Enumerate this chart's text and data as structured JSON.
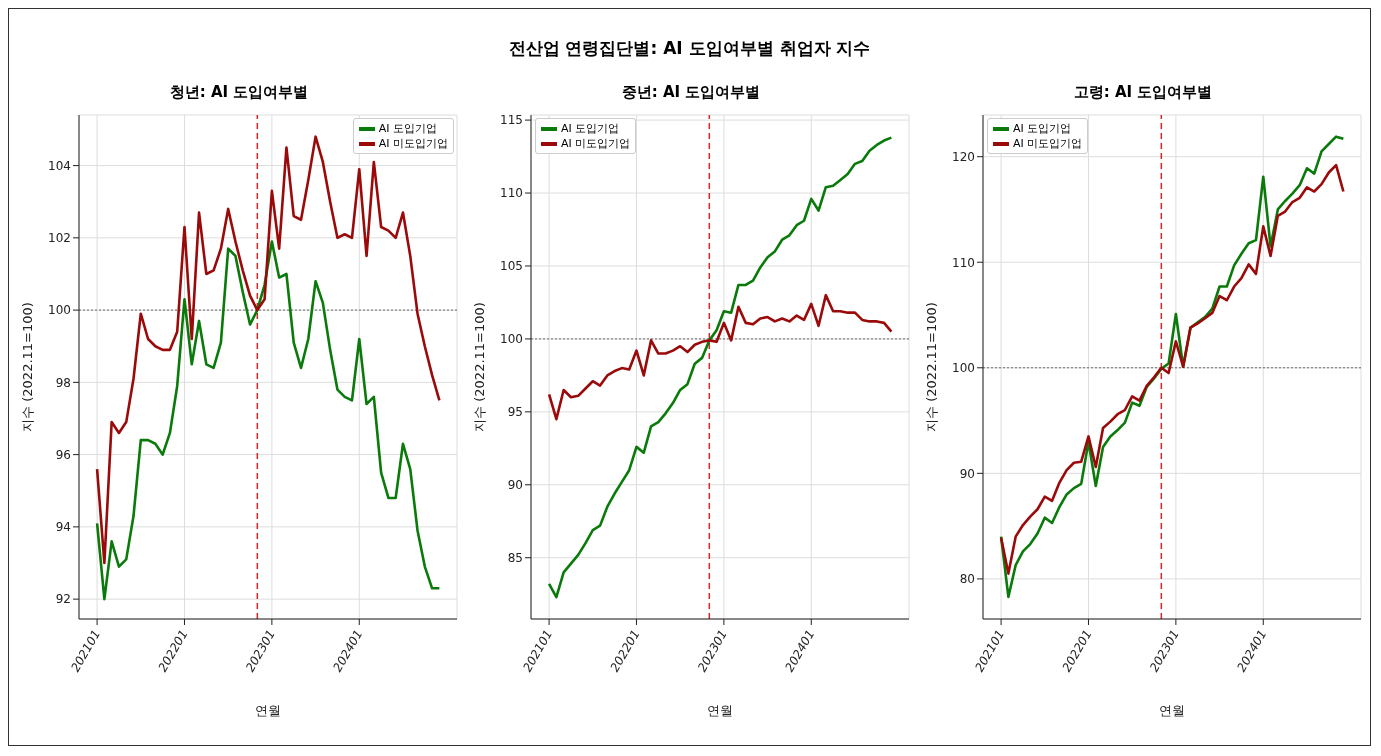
{
  "chart_data": [
    {
      "type": "line",
      "title": "청년: AI 도입여부별",
      "xlabel": "연월",
      "ylabel": "지수 (2022.11=100)",
      "annotations": [
        "전산업 연령집단별: AI 도입여부별 취업자 지수"
      ],
      "x": [
        "2021-01",
        "2021-02",
        "2021-03",
        "2021-04",
        "2021-05",
        "2021-06",
        "2021-07",
        "2021-08",
        "2021-09",
        "2021-10",
        "2021-11",
        "2021-12",
        "2022-01",
        "2022-02",
        "2022-03",
        "2022-04",
        "2022-05",
        "2022-06",
        "2022-07",
        "2022-08",
        "2022-09",
        "2022-10",
        "2022-11",
        "2022-12",
        "2023-01",
        "2023-02",
        "2023-03",
        "2023-04",
        "2023-05",
        "2023-06",
        "2023-07",
        "2023-08",
        "2023-09",
        "2023-10",
        "2023-11",
        "2023-12",
        "2024-01",
        "2024-02",
        "2024-03",
        "2024-04",
        "2024-05",
        "2024-06",
        "2024-07",
        "2024-08",
        "2024-09",
        "2024-10",
        "2024-11",
        "2024-12"
      ],
      "series": [
        {
          "name": "AI 도입기업",
          "color": "#0a7a0a",
          "values": [
            94.1,
            92.0,
            93.6,
            92.9,
            93.1,
            94.3,
            96.4,
            96.4,
            96.3,
            96.0,
            96.6,
            97.9,
            100.3,
            98.5,
            99.7,
            98.5,
            98.4,
            99.1,
            101.7,
            101.5,
            100.5,
            99.6,
            100.0,
            100.7,
            101.9,
            100.9,
            101.0,
            99.1,
            98.4,
            99.2,
            100.8,
            100.2,
            98.9,
            97.8,
            97.6,
            97.5,
            99.2,
            97.4,
            97.6,
            95.5,
            94.8,
            94.8,
            96.3,
            95.6,
            93.9,
            92.9,
            92.3,
            92.3
          ]
        },
        {
          "name": "AI 미도입기업",
          "color": "#9b0a0a",
          "values": [
            95.6,
            93.0,
            96.9,
            96.6,
            96.9,
            98.1,
            99.9,
            99.2,
            99.0,
            98.9,
            98.9,
            99.4,
            102.3,
            99.2,
            102.7,
            101.0,
            101.1,
            101.7,
            102.8,
            101.9,
            101.1,
            100.4,
            100.0,
            100.3,
            103.3,
            101.7,
            104.5,
            102.6,
            102.5,
            103.6,
            104.8,
            104.1,
            103.0,
            102.0,
            102.1,
            102.0,
            103.9,
            101.5,
            104.1,
            102.3,
            102.2,
            102.0,
            102.7,
            101.5,
            99.9,
            99.0,
            98.2,
            97.5
          ]
        }
      ],
      "xlim": [
        "2020-10-17",
        "2025-02-14"
      ],
      "xticks": [
        {
          "value": "2021-01",
          "label": "202101"
        },
        {
          "value": "2022-01",
          "label": "202201"
        },
        {
          "value": "2023-01",
          "label": "202301"
        },
        {
          "value": "2024-01",
          "label": "202401"
        }
      ],
      "ylim": [
        91.45,
        105.4
      ],
      "yticks": [
        92,
        94,
        96,
        98,
        100,
        102,
        104
      ],
      "grid": true,
      "legend": "top right",
      "line_style": "solid",
      "ref_lines": [
        {
          "axis": "x",
          "value": "2022-11",
          "color": "#d62728",
          "line_style": "dashed"
        },
        {
          "axis": "y",
          "value": 100,
          "color": "#666666",
          "line_style": "dotted"
        }
      ]
    },
    {
      "type": "line",
      "title": "중년: AI 도입여부별",
      "xlabel": "연월",
      "ylabel": "지수 (2022.11=100)",
      "x": [
        "2021-01",
        "2021-02",
        "2021-03",
        "2021-04",
        "2021-05",
        "2021-06",
        "2021-07",
        "2021-08",
        "2021-09",
        "2021-10",
        "2021-11",
        "2021-12",
        "2022-01",
        "2022-02",
        "2022-03",
        "2022-04",
        "2022-05",
        "2022-06",
        "2022-07",
        "2022-08",
        "2022-09",
        "2022-10",
        "2022-11",
        "2022-12",
        "2023-01",
        "2023-02",
        "2023-03",
        "2023-04",
        "2023-05",
        "2023-06",
        "2023-07",
        "2023-08",
        "2023-09",
        "2023-10",
        "2023-11",
        "2023-12",
        "2024-01",
        "2024-02",
        "2024-03",
        "2024-04",
        "2024-05",
        "2024-06",
        "2024-07",
        "2024-08",
        "2024-09",
        "2024-10",
        "2024-11",
        "2024-12"
      ],
      "series": [
        {
          "name": "AI 도입기업",
          "color": "#0a7a0a",
          "values": [
            83.2,
            82.3,
            84.0,
            84.6,
            85.2,
            86.0,
            86.9,
            87.2,
            88.5,
            89.4,
            90.2,
            91.0,
            92.6,
            92.2,
            94.0,
            94.3,
            94.9,
            95.6,
            96.5,
            96.9,
            98.3,
            98.7,
            99.9,
            100.6,
            101.9,
            101.8,
            103.7,
            103.7,
            104.0,
            104.9,
            105.6,
            106.0,
            106.8,
            107.1,
            107.8,
            108.1,
            109.6,
            108.8,
            110.4,
            110.5,
            110.9,
            111.3,
            112.0,
            112.2,
            112.9,
            113.3,
            113.6,
            113.8
          ]
        },
        {
          "name": "AI 미도입기업",
          "color": "#9b0a0a",
          "values": [
            96.2,
            94.5,
            96.5,
            96.0,
            96.1,
            96.6,
            97.1,
            96.8,
            97.5,
            97.8,
            98.0,
            97.9,
            99.2,
            97.5,
            99.9,
            99.0,
            99.0,
            99.2,
            99.5,
            99.1,
            99.6,
            99.8,
            99.9,
            99.8,
            101.1,
            99.9,
            102.2,
            101.1,
            101.0,
            101.4,
            101.5,
            101.2,
            101.4,
            101.2,
            101.6,
            101.3,
            102.4,
            100.9,
            103.0,
            101.9,
            101.9,
            101.8,
            101.8,
            101.3,
            101.2,
            101.2,
            101.1,
            100.5
          ]
        }
      ],
      "xlim": [
        "2020-10-17",
        "2025-02-14"
      ],
      "xticks": [
        {
          "value": "2021-01",
          "label": "202101"
        },
        {
          "value": "2022-01",
          "label": "202201"
        },
        {
          "value": "2023-01",
          "label": "202301"
        },
        {
          "value": "2024-01",
          "label": "202401"
        }
      ],
      "ylim": [
        80.8,
        115.35
      ],
      "yticks": [
        85,
        90,
        95,
        100,
        105,
        110,
        115
      ],
      "grid": true,
      "legend": "top left",
      "line_style": "solid",
      "ref_lines": [
        {
          "axis": "x",
          "value": "2022-11",
          "color": "#d62728",
          "line_style": "dashed"
        },
        {
          "axis": "y",
          "value": 100,
          "color": "#666666",
          "line_style": "dotted"
        }
      ]
    },
    {
      "type": "line",
      "title": "고령: AI 도입여부별",
      "xlabel": "연월",
      "ylabel": "지수 (2022.11=100)",
      "x": [
        "2021-01",
        "2021-02",
        "2021-03",
        "2021-04",
        "2021-05",
        "2021-06",
        "2021-07",
        "2021-08",
        "2021-09",
        "2021-10",
        "2021-11",
        "2021-12",
        "2022-01",
        "2022-02",
        "2022-03",
        "2022-04",
        "2022-05",
        "2022-06",
        "2022-07",
        "2022-08",
        "2022-09",
        "2022-10",
        "2022-11",
        "2022-12",
        "2023-01",
        "2023-02",
        "2023-03",
        "2023-04",
        "2023-05",
        "2023-06",
        "2023-07",
        "2023-08",
        "2023-09",
        "2023-10",
        "2023-11",
        "2023-12",
        "2024-01",
        "2024-02",
        "2024-03",
        "2024-04",
        "2024-05",
        "2024-06",
        "2024-07",
        "2024-08",
        "2024-09",
        "2024-10",
        "2024-11",
        "2024-12"
      ],
      "series": [
        {
          "name": "AI 도입기업",
          "color": "#0a7a0a",
          "values": [
            84.0,
            78.3,
            81.3,
            82.6,
            83.3,
            84.3,
            85.8,
            85.3,
            86.8,
            88.0,
            88.6,
            89.0,
            93.0,
            88.8,
            92.5,
            93.5,
            94.1,
            94.8,
            96.7,
            96.4,
            98.2,
            99.0,
            99.9,
            100.4,
            105.1,
            100.1,
            103.8,
            104.3,
            104.8,
            105.6,
            107.7,
            107.7,
            109.7,
            110.8,
            111.8,
            112.1,
            118.1,
            111.5,
            115.0,
            115.8,
            116.5,
            117.3,
            118.9,
            118.4,
            120.5,
            121.2,
            121.9,
            121.7
          ]
        },
        {
          "name": "AI 미도입기업",
          "color": "#9b0a0a",
          "values": [
            83.9,
            80.5,
            84.0,
            85.1,
            85.9,
            86.6,
            87.8,
            87.4,
            89.1,
            90.3,
            91.0,
            91.1,
            93.5,
            90.6,
            94.3,
            94.9,
            95.6,
            96.0,
            97.3,
            96.9,
            98.3,
            99.1,
            100.0,
            99.5,
            102.5,
            100.1,
            103.8,
            104.2,
            104.7,
            105.2,
            106.8,
            106.4,
            107.7,
            108.5,
            109.8,
            108.9,
            113.4,
            110.6,
            114.4,
            114.8,
            115.7,
            116.1,
            117.1,
            116.7,
            117.4,
            118.5,
            119.2,
            116.7
          ]
        }
      ],
      "xlim": [
        "2020-10-17",
        "2025-02-14"
      ],
      "xticks": [
        {
          "value": "2021-01",
          "label": "202101"
        },
        {
          "value": "2022-01",
          "label": "202201"
        },
        {
          "value": "2023-01",
          "label": "202301"
        },
        {
          "value": "2024-01",
          "label": "202401"
        }
      ],
      "ylim": [
        76.2,
        123.95
      ],
      "yticks": [
        80,
        90,
        100,
        110,
        120
      ],
      "grid": true,
      "legend": "top left",
      "line_style": "solid",
      "ref_lines": [
        {
          "axis": "x",
          "value": "2022-11",
          "color": "#d62728",
          "line_style": "dashed"
        },
        {
          "axis": "y",
          "value": 100,
          "color": "#666666",
          "line_style": "dotted"
        }
      ]
    }
  ]
}
